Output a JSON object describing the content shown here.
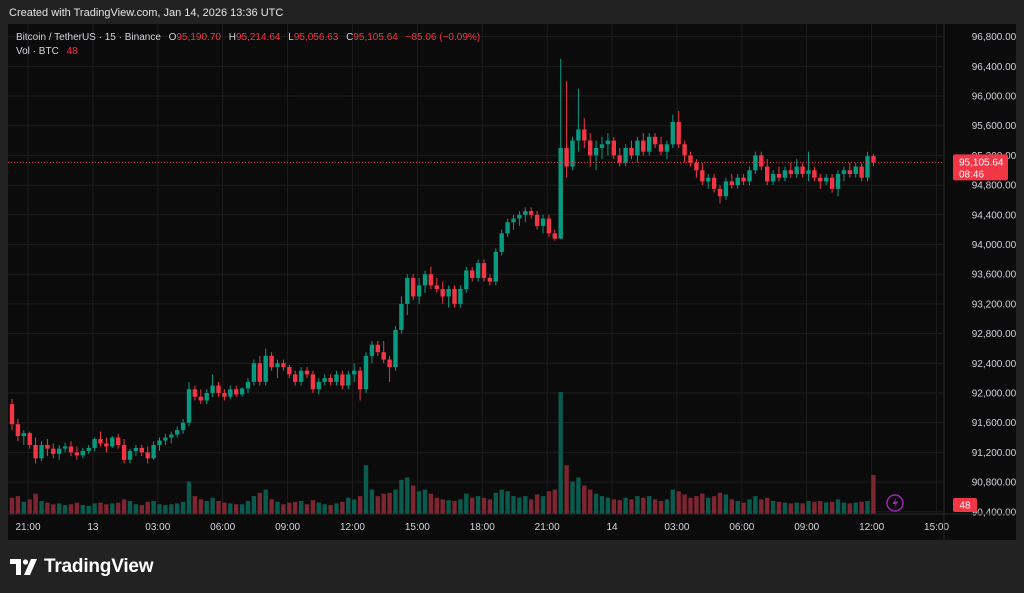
{
  "caption": "Created with TradingView.com, Jan 14, 2026 13:36 UTC",
  "legend": {
    "symbol": "Bitcoin / TetherUS · 15 · Binance",
    "open_label": "O",
    "open": "95,190.70",
    "high_label": "H",
    "high": "95,214.64",
    "low_label": "L",
    "low": "95,056.63",
    "close_label": "C",
    "close": "95,105.64",
    "change": "−85.06 (−0.09%)",
    "vol_label": "Vol · BTC",
    "vol_value": "48"
  },
  "price_badge": {
    "price": "95,105.64",
    "countdown": "08:46"
  },
  "volume_badge": "48",
  "brand": "TradingView",
  "colors": {
    "up": "#089981",
    "down": "#f23645",
    "background": "#0b0b0b",
    "frame": "#222222",
    "grid": "#1c1c1c",
    "volume_up": "#0a5a4e",
    "volume_down": "#7d2530",
    "lightning": "#9c27b0"
  },
  "chart_data": {
    "type": "candlestick",
    "symbol": "BTCUSDT",
    "interval": "15",
    "exchange": "Binance",
    "y_ticks": [
      90400,
      90800,
      91200,
      91600,
      92000,
      92400,
      92800,
      93200,
      93600,
      94000,
      94400,
      94800,
      95200,
      95600,
      96000,
      96400,
      96800
    ],
    "ylim": [
      90370,
      96970
    ],
    "x_ticks": [
      "21:00",
      "13",
      "03:00",
      "06:00",
      "09:00",
      "12:00",
      "15:00",
      "18:00",
      "21:00",
      "14",
      "03:00",
      "06:00",
      "09:00",
      "12:00",
      "15:00"
    ],
    "current_price": 95105.64,
    "grid": true,
    "candles": [
      [
        91850,
        91920,
        91500,
        91580,
        20
      ],
      [
        91580,
        91650,
        91350,
        91420,
        22
      ],
      [
        91420,
        91500,
        91300,
        91460,
        15
      ],
      [
        91460,
        91480,
        91250,
        91300,
        18
      ],
      [
        91300,
        91400,
        91050,
        91120,
        25
      ],
      [
        91120,
        91350,
        91080,
        91300,
        16
      ],
      [
        91300,
        91380,
        91150,
        91250,
        14
      ],
      [
        91250,
        91320,
        91120,
        91180,
        12
      ],
      [
        91180,
        91300,
        91100,
        91250,
        13
      ],
      [
        91250,
        91330,
        91200,
        91280,
        11
      ],
      [
        91280,
        91350,
        91150,
        91200,
        12
      ],
      [
        91200,
        91280,
        91100,
        91160,
        14
      ],
      [
        91160,
        91260,
        91120,
        91220,
        11
      ],
      [
        91220,
        91300,
        91180,
        91260,
        10
      ],
      [
        91260,
        91400,
        91220,
        91380,
        13
      ],
      [
        91380,
        91480,
        91280,
        91320,
        14
      ],
      [
        91320,
        91400,
        91200,
        91280,
        12
      ],
      [
        91280,
        91420,
        91260,
        91400,
        13
      ],
      [
        91400,
        91450,
        91250,
        91300,
        14
      ],
      [
        91300,
        91380,
        91050,
        91100,
        18
      ],
      [
        91100,
        91250,
        91050,
        91220,
        16
      ],
      [
        91220,
        91300,
        91150,
        91260,
        12
      ],
      [
        91260,
        91300,
        91150,
        91200,
        11
      ],
      [
        91200,
        91280,
        91050,
        91120,
        15
      ],
      [
        91120,
        91350,
        91100,
        91300,
        16
      ],
      [
        91300,
        91400,
        91220,
        91360,
        12
      ],
      [
        91360,
        91450,
        91300,
        91400,
        11
      ],
      [
        91400,
        91480,
        91320,
        91440,
        12
      ],
      [
        91440,
        91550,
        91400,
        91500,
        13
      ],
      [
        91500,
        91650,
        91450,
        91600,
        15
      ],
      [
        91600,
        92150,
        91550,
        92050,
        40
      ],
      [
        92050,
        92100,
        91900,
        91950,
        22
      ],
      [
        91950,
        92050,
        91850,
        91900,
        18
      ],
      [
        91900,
        92050,
        91850,
        92000,
        16
      ],
      [
        92000,
        92250,
        91950,
        92100,
        20
      ],
      [
        92100,
        92150,
        91950,
        92000,
        16
      ],
      [
        92000,
        92050,
        91900,
        91950,
        14
      ],
      [
        91950,
        92100,
        91920,
        92050,
        13
      ],
      [
        92050,
        92100,
        91950,
        91980,
        12
      ],
      [
        91980,
        92080,
        91950,
        92060,
        12
      ],
      [
        92060,
        92200,
        92000,
        92150,
        16
      ],
      [
        92150,
        92450,
        92100,
        92400,
        22
      ],
      [
        92400,
        92500,
        92100,
        92150,
        26
      ],
      [
        92150,
        92600,
        92100,
        92500,
        30
      ],
      [
        92500,
        92550,
        92300,
        92350,
        18
      ],
      [
        92350,
        92450,
        92200,
        92400,
        15
      ],
      [
        92400,
        92450,
        92300,
        92350,
        12
      ],
      [
        92350,
        92380,
        92200,
        92250,
        14
      ],
      [
        92250,
        92300,
        92100,
        92150,
        15
      ],
      [
        92150,
        92350,
        92100,
        92300,
        16
      ],
      [
        92300,
        92350,
        92200,
        92250,
        12
      ],
      [
        92250,
        92300,
        92000,
        92050,
        17
      ],
      [
        92050,
        92200,
        91980,
        92150,
        14
      ],
      [
        92150,
        92250,
        92100,
        92200,
        12
      ],
      [
        92200,
        92250,
        92100,
        92150,
        11
      ],
      [
        92150,
        92300,
        92100,
        92250,
        13
      ],
      [
        92250,
        92300,
        92050,
        92100,
        15
      ],
      [
        92100,
        92300,
        92050,
        92250,
        20
      ],
      [
        92250,
        92400,
        92150,
        92300,
        18
      ],
      [
        92300,
        92350,
        91900,
        92050,
        22
      ],
      [
        92050,
        92550,
        92000,
        92500,
        60
      ],
      [
        92500,
        92700,
        92400,
        92650,
        30
      ],
      [
        92650,
        92700,
        92500,
        92550,
        22
      ],
      [
        92550,
        92700,
        92400,
        92450,
        25
      ],
      [
        92450,
        92500,
        92150,
        92350,
        26
      ],
      [
        92350,
        92900,
        92300,
        92850,
        30
      ],
      [
        92850,
        93300,
        92800,
        93200,
        42
      ],
      [
        93200,
        93600,
        93050,
        93550,
        45
      ],
      [
        93550,
        93600,
        93250,
        93300,
        35
      ],
      [
        93300,
        93550,
        93200,
        93450,
        28
      ],
      [
        93450,
        93650,
        93350,
        93600,
        30
      ],
      [
        93600,
        93700,
        93400,
        93450,
        25
      ],
      [
        93450,
        93550,
        93350,
        93400,
        20
      ],
      [
        93400,
        93500,
        93200,
        93300,
        18
      ],
      [
        93300,
        93450,
        93150,
        93400,
        17
      ],
      [
        93400,
        93450,
        93150,
        93200,
        16
      ],
      [
        93200,
        93450,
        93150,
        93400,
        18
      ],
      [
        93400,
        93700,
        93350,
        93650,
        25
      ],
      [
        93650,
        93700,
        93500,
        93550,
        20
      ],
      [
        93550,
        93800,
        93500,
        93750,
        22
      ],
      [
        93750,
        93800,
        93500,
        93550,
        20
      ],
      [
        93550,
        93600,
        93450,
        93500,
        18
      ],
      [
        93500,
        93950,
        93450,
        93900,
        26
      ],
      [
        93900,
        94200,
        93850,
        94150,
        30
      ],
      [
        94150,
        94350,
        94100,
        94300,
        28
      ],
      [
        94300,
        94400,
        94200,
        94350,
        22
      ],
      [
        94350,
        94450,
        94250,
        94400,
        20
      ],
      [
        94400,
        94500,
        94300,
        94450,
        22
      ],
      [
        94450,
        94500,
        94350,
        94400,
        18
      ],
      [
        94400,
        94450,
        94200,
        94250,
        24
      ],
      [
        94250,
        94400,
        94150,
        94350,
        22
      ],
      [
        94350,
        94400,
        94100,
        94150,
        28
      ],
      [
        94150,
        94200,
        94050,
        94080,
        30
      ],
      [
        94080,
        96500,
        94070,
        95300,
        150
      ],
      [
        95300,
        96200,
        94900,
        95050,
        60
      ],
      [
        95050,
        95450,
        95000,
        95400,
        40
      ],
      [
        95400,
        96100,
        95250,
        95550,
        45
      ],
      [
        95550,
        95700,
        95300,
        95400,
        35
      ],
      [
        95400,
        95500,
        95050,
        95200,
        30
      ],
      [
        95200,
        95400,
        95000,
        95300,
        25
      ],
      [
        95300,
        95450,
        95150,
        95350,
        22
      ],
      [
        95350,
        95500,
        95200,
        95400,
        20
      ],
      [
        95400,
        95450,
        95150,
        95200,
        18
      ],
      [
        95200,
        95300,
        95050,
        95100,
        17
      ],
      [
        95100,
        95350,
        95050,
        95300,
        20
      ],
      [
        95300,
        95400,
        95150,
        95200,
        18
      ],
      [
        95200,
        95450,
        95100,
        95400,
        22
      ],
      [
        95400,
        95500,
        95200,
        95250,
        20
      ],
      [
        95250,
        95500,
        95200,
        95450,
        22
      ],
      [
        95450,
        95500,
        95300,
        95350,
        18
      ],
      [
        95350,
        95450,
        95200,
        95250,
        16
      ],
      [
        95250,
        95400,
        95150,
        95350,
        18
      ],
      [
        95350,
        95750,
        95300,
        95650,
        30
      ],
      [
        95650,
        95800,
        95300,
        95350,
        28
      ],
      [
        95350,
        95400,
        95100,
        95200,
        24
      ],
      [
        95200,
        95250,
        95050,
        95100,
        20
      ],
      [
        95100,
        95150,
        94900,
        95000,
        22
      ],
      [
        95000,
        95100,
        94800,
        94850,
        25
      ],
      [
        94850,
        94950,
        94750,
        94900,
        20
      ],
      [
        94900,
        94950,
        94700,
        94750,
        22
      ],
      [
        94750,
        94800,
        94550,
        94650,
        26
      ],
      [
        94650,
        94900,
        94600,
        94850,
        24
      ],
      [
        94850,
        94950,
        94750,
        94800,
        18
      ],
      [
        94800,
        94950,
        94750,
        94900,
        16
      ],
      [
        94900,
        94950,
        94800,
        94850,
        14
      ],
      [
        94850,
        95050,
        94800,
        95000,
        18
      ],
      [
        95000,
        95250,
        94950,
        95200,
        22
      ],
      [
        95200,
        95250,
        95000,
        95050,
        18
      ],
      [
        95050,
        95150,
        94800,
        94850,
        20
      ],
      [
        94850,
        95000,
        94800,
        94950,
        16
      ],
      [
        94950,
        95050,
        94850,
        94900,
        15
      ],
      [
        94900,
        95050,
        94850,
        95000,
        14
      ],
      [
        95000,
        95100,
        94900,
        94950,
        13
      ],
      [
        94950,
        95150,
        94900,
        95050,
        14
      ],
      [
        95050,
        95100,
        94900,
        94950,
        13
      ],
      [
        94950,
        95250,
        94850,
        95000,
        16
      ],
      [
        95000,
        95050,
        94850,
        94900,
        15
      ],
      [
        94900,
        94950,
        94750,
        94850,
        16
      ],
      [
        94850,
        94950,
        94800,
        94900,
        14
      ],
      [
        94900,
        94950,
        94700,
        94750,
        15
      ],
      [
        94750,
        95000,
        94650,
        94950,
        18
      ],
      [
        94950,
        95050,
        94850,
        95000,
        14
      ],
      [
        95000,
        95100,
        94900,
        94950,
        13
      ],
      [
        94950,
        95100,
        94900,
        95050,
        14
      ],
      [
        95050,
        95100,
        94850,
        94900,
        15
      ],
      [
        94900,
        95250,
        94850,
        95190,
        16
      ],
      [
        95190.7,
        95214.64,
        95056.63,
        95105.64,
        48
      ]
    ]
  }
}
